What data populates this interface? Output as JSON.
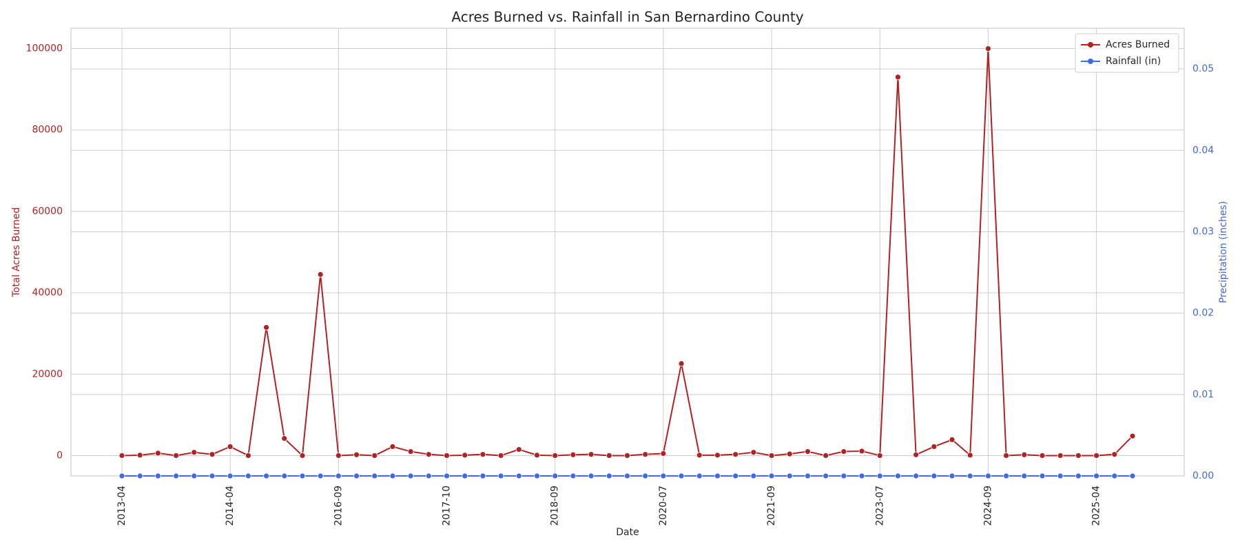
{
  "chart_data": {
    "type": "line",
    "title": "Acres Burned vs. Rainfall in San Bernardino County",
    "xlabel": "Date",
    "ylabel": "Total Acres Burned",
    "y2label": "Precipitation (inches)",
    "categories": [
      "2013-04",
      null,
      null,
      null,
      null,
      null,
      "2014-04",
      null,
      null,
      null,
      null,
      null,
      "2016-09",
      null,
      null,
      null,
      null,
      null,
      "2017-10",
      null,
      null,
      null,
      null,
      null,
      "2018-09",
      null,
      null,
      null,
      null,
      null,
      "2020-07",
      null,
      null,
      null,
      null,
      null,
      "2021-09",
      null,
      null,
      null,
      null,
      null,
      "2023-07",
      null,
      null,
      null,
      null,
      null,
      "2024-09",
      null,
      null,
      null,
      null,
      null,
      "2025-04",
      null,
      null
    ],
    "series": [
      {
        "name": "Acres Burned",
        "color": "#b22222",
        "axis": "y",
        "values": [
          0,
          100,
          600,
          0,
          800,
          300,
          2200,
          0,
          31500,
          4200,
          0,
          44500,
          0,
          200,
          0,
          2200,
          1000,
          300,
          0,
          100,
          300,
          0,
          1500,
          100,
          0,
          200,
          300,
          0,
          0,
          300,
          500,
          22600,
          100,
          100,
          300,
          800,
          0,
          400,
          1000,
          0,
          1000,
          1100,
          0,
          93000,
          200,
          2200,
          3900,
          100,
          100000,
          0,
          200,
          0,
          0,
          0,
          0,
          300,
          4800
        ]
      },
      {
        "name": "Rainfall (in)",
        "color": "#4169e1",
        "axis": "y2",
        "values": [
          0,
          0,
          0,
          0,
          0,
          0,
          0,
          0,
          0,
          0,
          0,
          0,
          0,
          0,
          0,
          0,
          0,
          0,
          0,
          0,
          0,
          0,
          0,
          0,
          0,
          0,
          0,
          0,
          0,
          0,
          0,
          0,
          0,
          0,
          0,
          0,
          0,
          0,
          0,
          0,
          0,
          0,
          0,
          0,
          0,
          0,
          0,
          0,
          0,
          0,
          0,
          0,
          0,
          0,
          0,
          0,
          0
        ]
      }
    ],
    "ylim": [
      -5000,
      105000
    ],
    "yticks": [
      0,
      20000,
      40000,
      60000,
      80000,
      100000
    ],
    "y2lim": [
      0,
      0.055
    ],
    "y2ticks": [
      {
        "value": 0,
        "label": "0.00"
      },
      0.01,
      0.02,
      0.03,
      0.04,
      0.05
    ],
    "grid": true,
    "legend": "upper right"
  }
}
